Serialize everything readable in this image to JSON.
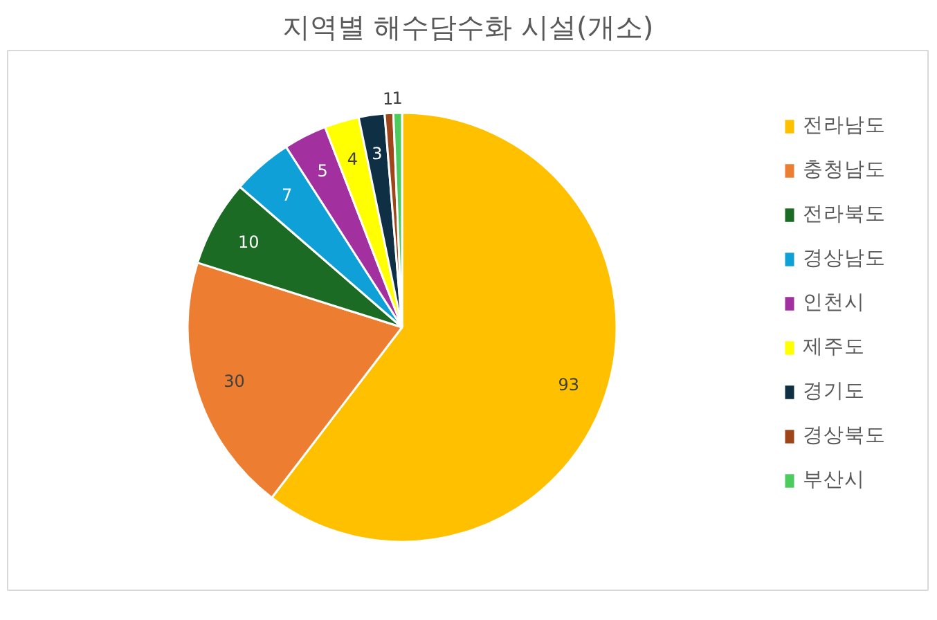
{
  "chart_data": {
    "type": "pie",
    "title": "지역별 해수담수화 시설(개소)",
    "categories": [
      "전라남도",
      "충청남도",
      "전라북도",
      "경상남도",
      "인천시",
      "제주도",
      "경기도",
      "경상북도",
      "부산시"
    ],
    "values": [
      93,
      30,
      10,
      7,
      5,
      4,
      3,
      1,
      1
    ],
    "colors": [
      "#ffc000",
      "#ed7d31",
      "#1b6b25",
      "#10a0d8",
      "#a2309f",
      "#ffff00",
      "#0f3044",
      "#a0441a",
      "#4ccc5c"
    ],
    "data_labels": true,
    "legend": "right"
  }
}
